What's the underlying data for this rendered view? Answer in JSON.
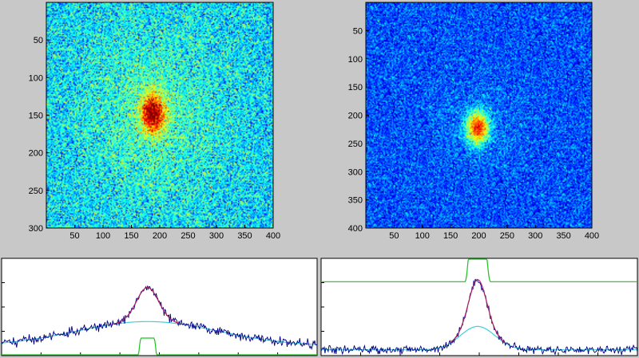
{
  "figure": {
    "background": "#c8c8c8",
    "colormap": "jet"
  },
  "chart_data": [
    {
      "type": "heatmap",
      "name": "image-left",
      "xlim": [
        0,
        400
      ],
      "ylim": [
        300,
        0
      ],
      "xticks": [
        50,
        100,
        150,
        200,
        250,
        300,
        350,
        400
      ],
      "yticks": [
        50,
        100,
        150,
        200,
        250,
        300
      ],
      "peak": {
        "x": 188,
        "y": 148,
        "sigma_x": 14,
        "sigma_y": 18
      },
      "background_level": 0.34,
      "noise": 0.11,
      "halo_sigma": 85,
      "halo_amplitude": 0.1
    },
    {
      "type": "heatmap",
      "name": "image-right",
      "xlim": [
        0,
        400
      ],
      "ylim": [
        400,
        0
      ],
      "xticks": [
        50,
        100,
        150,
        200,
        250,
        300,
        350,
        400
      ],
      "yticks": [
        50,
        100,
        150,
        200,
        250,
        300,
        350,
        400
      ],
      "peak": {
        "x": 198,
        "y": 222,
        "sigma_x": 13,
        "sigma_y": 19
      },
      "background_level": 0.2,
      "noise": 0.08,
      "halo_sigma": 45,
      "halo_amplitude": 0.06
    },
    {
      "type": "line",
      "name": "profile-left",
      "xlim": [
        0,
        400
      ],
      "ylim": [
        0,
        1
      ],
      "series": [
        {
          "role": "data",
          "color": "#000080",
          "center": 185,
          "peak_width": 14,
          "peak_height": 0.6,
          "baseline": 0.1,
          "noise": 0.022
        },
        {
          "role": "fit",
          "color": "#b02060",
          "center": 185,
          "peak_width": 14,
          "peak_height": 0.6,
          "baseline": 0.1
        },
        {
          "role": "background",
          "color": "#40d0e0",
          "center": 185,
          "width": 90,
          "height": 0.25,
          "baseline": 0.1
        },
        {
          "role": "mask",
          "color": "#20c020",
          "center": 185,
          "half_width": 16,
          "low": -0.3,
          "high": 0.18
        }
      ]
    },
    {
      "type": "line",
      "name": "profile-right",
      "xlim": [
        0,
        400
      ],
      "ylim": [
        0,
        1
      ],
      "series": [
        {
          "role": "data",
          "color": "#000080",
          "center": 198,
          "peak_width": 11,
          "peak_height": 0.72,
          "baseline": 0.06,
          "noise": 0.02
        },
        {
          "role": "fit",
          "color": "#b02060",
          "center": 198,
          "peak_width": 11,
          "peak_height": 0.72,
          "baseline": 0.06
        },
        {
          "role": "background",
          "color": "#40d0e0",
          "center": 198,
          "width": 22,
          "height": 0.24,
          "baseline": 0.06
        },
        {
          "role": "mask",
          "color": "#20c020",
          "center": 198,
          "half_width": 16,
          "low": 0.76,
          "high": 1.2
        }
      ]
    }
  ]
}
